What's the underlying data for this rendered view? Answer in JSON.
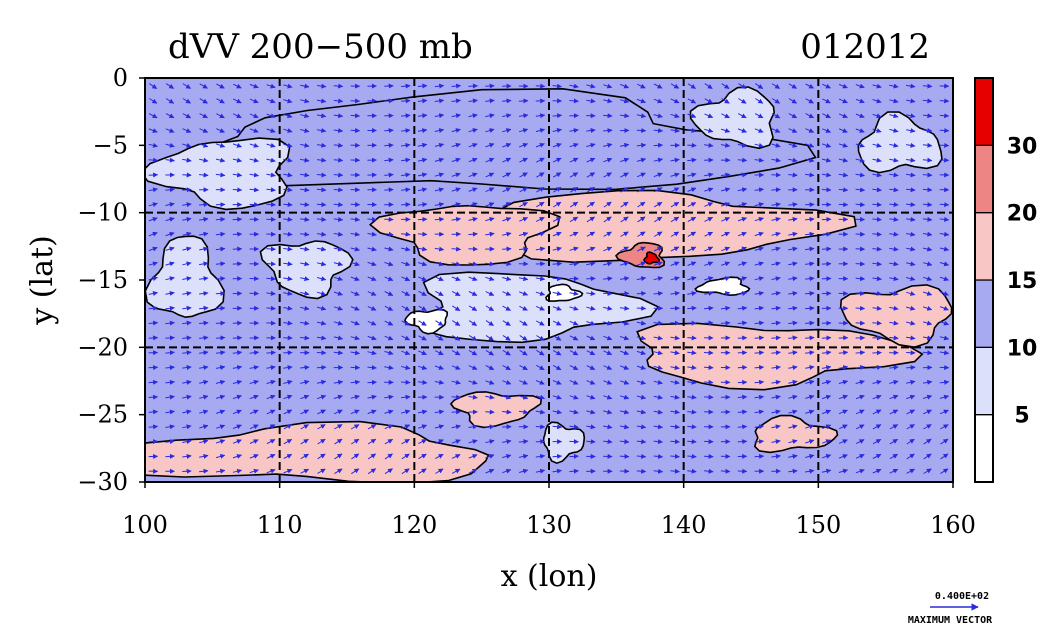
{
  "chart_data": {
    "type": "heatmap",
    "title": "dVV 200−500 mb",
    "date_label": "012012",
    "xlabel": "x (lon)",
    "ylabel": "y (lat)",
    "xlim": [
      100,
      160
    ],
    "ylim": [
      -30,
      0
    ],
    "x_ticks": [
      "100",
      "110",
      "120",
      "130",
      "140",
      "150",
      "160"
    ],
    "y_ticks": [
      "0",
      "−5",
      "−10",
      "−15",
      "−20",
      "−25",
      "−30"
    ],
    "grid": true,
    "colorbar": {
      "levels": [
        0,
        5,
        10,
        15,
        20,
        30,
        35
      ],
      "tick_labels": [
        "5",
        "10",
        "15",
        "20",
        "30"
      ],
      "colors": [
        "#ffffff",
        "#dde0fb",
        "#a7aaf0",
        "#f9c6c6",
        "#ee8585",
        "#e60000"
      ]
    },
    "vector_reference": {
      "value_label": "0.400E+02",
      "caption": "MAXIMUM VECTOR",
      "color": "#2a2ae0"
    },
    "regions": [
      {
        "level": 2,
        "lon": 125,
        "lat": -5,
        "rx": 22,
        "ry": 3.5
      },
      {
        "level": 3,
        "lon": 138,
        "lat": -11,
        "rx": 12,
        "ry": 2.5
      },
      {
        "level": 3,
        "lon": 124,
        "lat": -11.5,
        "rx": 6,
        "ry": 2.2
      },
      {
        "level": 4,
        "lon": 137,
        "lat": -13.2,
        "rx": 1.6,
        "ry": 0.9
      },
      {
        "level": 5,
        "lon": 137.6,
        "lat": -13.4,
        "rx": 0.5,
        "ry": 0.4
      },
      {
        "level": 3,
        "lon": 146,
        "lat": -20.5,
        "rx": 10,
        "ry": 2.2
      },
      {
        "level": 3,
        "lon": 156,
        "lat": -17.5,
        "rx": 4,
        "ry": 2.0
      },
      {
        "level": 3,
        "lon": 112,
        "lat": -28,
        "rx": 14,
        "ry": 2.0
      },
      {
        "level": 3,
        "lon": 148,
        "lat": -26.5,
        "rx": 3,
        "ry": 1.2
      },
      {
        "level": 3,
        "lon": 126,
        "lat": -24.5,
        "rx": 3,
        "ry": 1.2
      },
      {
        "level": 1,
        "lon": 106,
        "lat": -7,
        "rx": 5,
        "ry": 2.5
      },
      {
        "level": 1,
        "lon": 103,
        "lat": -15,
        "rx": 2.5,
        "ry": 3
      },
      {
        "level": 1,
        "lon": 128,
        "lat": -17,
        "rx": 8,
        "ry": 2.5
      },
      {
        "level": 1,
        "lon": 112,
        "lat": -14,
        "rx": 3,
        "ry": 2
      },
      {
        "level": 1,
        "lon": 144,
        "lat": -3,
        "rx": 3,
        "ry": 2
      },
      {
        "level": 1,
        "lon": 156,
        "lat": -5,
        "rx": 3,
        "ry": 2
      },
      {
        "level": 1,
        "lon": 131,
        "lat": -27,
        "rx": 1.5,
        "ry": 1.3
      },
      {
        "level": 0,
        "lon": 121,
        "lat": -18,
        "rx": 1.5,
        "ry": 0.8
      },
      {
        "level": 0,
        "lon": 143,
        "lat": -15.5,
        "rx": 1.8,
        "ry": 0.6
      },
      {
        "level": 0,
        "lon": 131,
        "lat": -16,
        "rx": 1.2,
        "ry": 0.6
      }
    ]
  }
}
